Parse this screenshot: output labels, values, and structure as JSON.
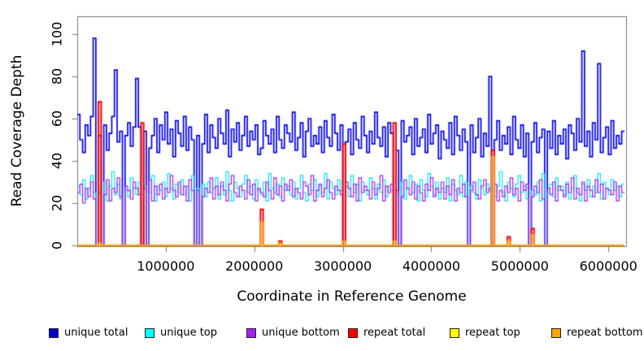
{
  "figure": {
    "background": "#FFFFFF"
  },
  "chart_data": {
    "type": "line",
    "line_style": "step",
    "title": "",
    "xlabel": "Coordinate in Reference Genome",
    "ylabel": "Read Coverage Depth",
    "xlim": [
      0,
      6200000
    ],
    "ylim": [
      0,
      100
    ],
    "x_ticks": [
      1000000,
      2000000,
      3000000,
      4000000,
      5000000,
      6000000
    ],
    "y_ticks": [
      0,
      20,
      40,
      60,
      80,
      100
    ],
    "grid": false,
    "legend_position": "bottom",
    "axis_color": "#777777",
    "text_color": "#000000",
    "x_step": 30000,
    "n_points": 206,
    "legend_x": [
      60,
      178,
      303,
      428,
      553,
      678
    ],
    "series": [
      {
        "name": "unique total",
        "color": "#0000EE",
        "legend_fill": "#0000CD",
        "line_width": 1.7,
        "values": [
          62,
          50,
          44,
          57,
          52,
          61,
          98,
          0,
          52,
          0,
          57,
          45,
          53,
          61,
          83,
          49,
          54,
          0,
          52,
          58,
          47,
          56,
          79,
          56,
          0,
          54,
          0,
          46,
          52,
          60,
          44,
          57,
          50,
          63,
          48,
          55,
          42,
          59,
          53,
          47,
          61,
          45,
          56,
          50,
          0,
          52,
          0,
          48,
          62,
          44,
          57,
          51,
          46,
          60,
          53,
          48,
          64,
          42,
          55,
          49,
          58,
          45,
          52,
          61,
          47,
          54,
          50,
          57,
          43,
          46,
          59,
          52,
          48,
          55,
          44,
          61,
          50,
          46,
          57,
          53,
          49,
          63,
          45,
          51,
          58,
          42,
          54,
          60,
          47,
          52,
          48,
          56,
          44,
          59,
          51,
          47,
          62,
          53,
          45,
          57,
          0,
          49,
          55,
          43,
          58,
          50,
          46,
          61,
          52,
          44,
          54,
          48,
          63,
          51,
          47,
          56,
          42,
          58,
          53,
          0,
          45,
          0,
          59,
          49,
          52,
          56,
          43,
          60,
          47,
          51,
          55,
          44,
          62,
          48,
          53,
          57,
          41,
          54,
          50,
          46,
          58,
          43,
          61,
          52,
          45,
          55,
          49,
          0,
          57,
          44,
          51,
          60,
          42,
          53,
          47,
          80,
          0,
          50,
          59,
          45,
          52,
          48,
          56,
          43,
          61,
          50,
          46,
          57,
          42,
          53,
          0,
          49,
          58,
          44,
          51,
          55,
          0,
          54,
          46,
          59,
          43,
          52,
          48,
          55,
          41,
          57,
          53,
          45,
          60,
          49,
          92,
          47,
          54,
          42,
          58,
          50,
          86,
          44,
          51,
          56,
          43,
          59,
          46,
          52,
          48,
          54
        ]
      },
      {
        "name": "unique top",
        "color": "#00E5EE",
        "legend_fill": "#00FFFF",
        "line_width": 1.2,
        "values": [
          28,
          24,
          31,
          22,
          27,
          33,
          25,
          0,
          26,
          0,
          30,
          21,
          28,
          35,
          24,
          29,
          22,
          0,
          26,
          23,
          32,
          27,
          24,
          30,
          0,
          28,
          0,
          25,
          33,
          21,
          28,
          26,
          30,
          23,
          34,
          27,
          22,
          29,
          25,
          31,
          24,
          28,
          21,
          33,
          0,
          27,
          0,
          29,
          23,
          30,
          25,
          27,
          32,
          22,
          28,
          24,
          35,
          26,
          21,
          30,
          27,
          23,
          29,
          33,
          25,
          28,
          22,
          31,
          26,
          24,
          30,
          21,
          34,
          27,
          25,
          29,
          23,
          32,
          26,
          28,
          24,
          30,
          22,
          27,
          33,
          25,
          21,
          29,
          26,
          31,
          23,
          28,
          25,
          34,
          22,
          30,
          27,
          24,
          31,
          26,
          0,
          28,
          23,
          33,
          25,
          29,
          21,
          30,
          26,
          24,
          32,
          27,
          22,
          29,
          25,
          31,
          23,
          28,
          26,
          0,
          24,
          0,
          30,
          22,
          27,
          33,
          25,
          29,
          21,
          31,
          26,
          23,
          34,
          28,
          24,
          30,
          22,
          27,
          25,
          32,
          21,
          29,
          26,
          24,
          33,
          23,
          30,
          0,
          28,
          25,
          22,
          31,
          27,
          24,
          29,
          26,
          0,
          23,
          28,
          35,
          25,
          21,
          30,
          27,
          23,
          29,
          33,
          25,
          28,
          22,
          0,
          26,
          24,
          30,
          21,
          34,
          0,
          25,
          29,
          23,
          32,
          26,
          28,
          24,
          30,
          22,
          27,
          33,
          25,
          21,
          29,
          26,
          31,
          23,
          28,
          25,
          34,
          22,
          30,
          27,
          24,
          31,
          26,
          28,
          23,
          29
        ]
      },
      {
        "name": "unique bottom",
        "color": "#A020F0",
        "legend_fill": "#A020F0",
        "line_width": 1.2,
        "values": [
          25,
          29,
          20,
          27,
          23,
          30,
          22,
          0,
          25,
          0,
          24,
          31,
          21,
          27,
          25,
          32,
          23,
          0,
          28,
          26,
          22,
          30,
          27,
          24,
          0,
          27,
          0,
          31,
          21,
          28,
          24,
          29,
          22,
          27,
          25,
          33,
          26,
          23,
          30,
          24,
          28,
          21,
          31,
          26,
          0,
          26,
          0,
          23,
          27,
          25,
          32,
          22,
          28,
          24,
          30,
          26,
          21,
          29,
          33,
          25,
          23,
          28,
          26,
          22,
          31,
          24,
          29,
          21,
          27,
          25,
          23,
          30,
          26,
          22,
          32,
          24,
          28,
          21,
          29,
          26,
          31,
          23,
          27,
          25,
          22,
          30,
          28,
          24,
          33,
          21,
          26,
          29,
          23,
          27,
          31,
          25,
          22,
          28,
          26,
          24,
          0,
          30,
          27,
          23,
          29,
          21,
          32,
          25,
          28,
          26,
          22,
          30,
          24,
          27,
          33,
          21,
          28,
          25,
          29,
          0,
          26,
          0,
          23,
          31,
          27,
          24,
          30,
          22,
          28,
          25,
          21,
          29,
          26,
          32,
          23,
          27,
          25,
          30,
          22,
          28,
          24,
          31,
          21,
          27,
          25,
          29,
          23,
          0,
          26,
          30,
          24,
          22,
          28,
          31,
          25,
          27,
          0,
          29,
          21,
          26,
          23,
          28,
          25,
          32,
          24,
          27,
          21,
          30,
          26,
          29,
          0,
          23,
          28,
          25,
          31,
          22,
          0,
          27,
          24,
          30,
          21,
          28,
          26,
          23,
          29,
          25,
          32,
          22,
          27,
          24,
          30,
          21,
          28,
          26,
          23,
          31,
          25,
          29,
          22,
          27,
          26,
          24,
          30,
          21,
          28,
          25
        ]
      },
      {
        "name": "repeat total",
        "color": "#FF0000",
        "legend_fill": "#FF0000",
        "line_width": 2,
        "base": 0,
        "spikes": {
          "8": 68,
          "24": 58,
          "69": 17,
          "76": 2,
          "100": 48,
          "119": 58,
          "156": 45,
          "162": 4,
          "171": 8
        }
      },
      {
        "name": "repeat top",
        "color": "#FFFF00",
        "legend_fill": "#FFFF00",
        "line_width": 1.2,
        "base": 0,
        "spikes": {}
      },
      {
        "name": "repeat bottom",
        "color": "#FFA500",
        "legend_fill": "#FFA500",
        "line_width": 1.6,
        "base": 0,
        "spikes": {
          "8": 1,
          "69": 11,
          "76": 1,
          "100": 2,
          "119": 2,
          "156": 42,
          "162": 2,
          "171": 5
        }
      }
    ]
  }
}
